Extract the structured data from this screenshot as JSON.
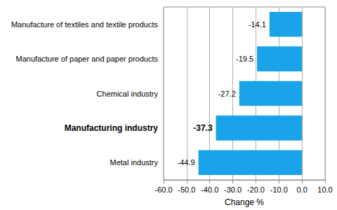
{
  "chart_data": {
    "type": "bar",
    "orientation": "horizontal",
    "categories": [
      "Manufacture of textiles and textile products",
      "Manufacture of paper and paper products",
      "Chemical industry",
      "Manufacturing industry",
      "Metal industry"
    ],
    "values": [
      -14.1,
      -19.5,
      -27.2,
      -37.3,
      -44.9
    ],
    "color": "#1aa3e8",
    "xlabel": "Change %",
    "xlim": [
      -60,
      10
    ],
    "xticks": [
      {
        "value": -60,
        "label": "-60.0"
      },
      {
        "value": -50,
        "label": "-50.0"
      },
      {
        "value": -40,
        "label": "-40.0"
      },
      {
        "value": -30,
        "label": "-30.0"
      },
      {
        "value": -20,
        "label": "-20.0"
      },
      {
        "value": -10,
        "label": "-10.0"
      },
      {
        "value": 0,
        "label": "0.0"
      },
      {
        "value": 10,
        "label": "10.0"
      }
    ],
    "grid": true,
    "data_labels": true
  }
}
